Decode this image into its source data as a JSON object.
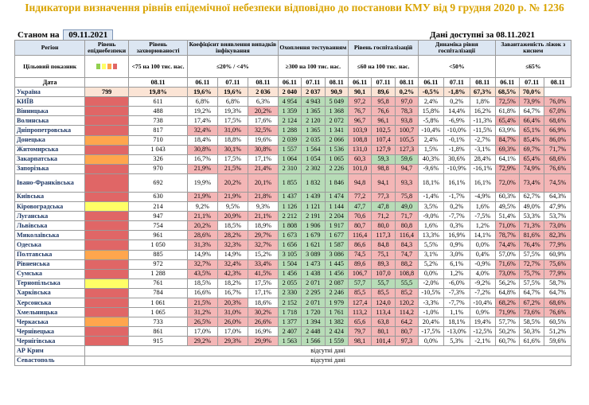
{
  "title": "Індикатори визначення рівнів епідемічної небезпеки відповідно до постанови КМУ від 9 грудня 2020 р. № 1236",
  "as_of_label": "Станом на",
  "as_of_date": "09.11.2021",
  "available_label": "Дані доступні за",
  "available_date": "08.11.2021",
  "headers": {
    "region": "Регіон",
    "level": "Рівень епіднебезпеки",
    "incidence": "Рівень захворюваності",
    "detection": "Коефіцієнт виявлення випадків інфікування",
    "testing": "Охоплення тестуванням",
    "hosp": "Рівень госпіталізацій",
    "dyn": "Динаміка рівня госпіталізації",
    "beds": "Завантаженість ліжок з киснем"
  },
  "target_label": "Цільовий показник",
  "targets": {
    "incidence": "<75 на 100 тис. нас.",
    "detection": "≤20% / <4%",
    "testing": "≥300 на 100 тис. нас.",
    "hosp": "≤60 на 100 тис. нас.",
    "dyn": "<50%",
    "beds": "≤65%"
  },
  "level_colors": {
    "green": "#92d050",
    "yellow": "#ffff66",
    "orange": "#ffa64d",
    "red": "#e06666"
  },
  "date_label": "Дата",
  "date_row": [
    "08.11",
    "06.11",
    "07.11",
    "08.11",
    "06.11",
    "07.11",
    "08.11",
    "06.11",
    "07.11",
    "08.11",
    "06.11",
    "07.11",
    "08.11",
    "06.11",
    "07.11",
    "08.11"
  ],
  "ukraine": {
    "name": "Україна",
    "values": [
      "799",
      "19,8%",
      "19,6%",
      "19,6%",
      "2 036",
      "2 040",
      "2 037",
      "90,9",
      "90,1",
      "89,6",
      "0,2%",
      "-0,5%",
      "-1,8%",
      "67,3%",
      "68,5%",
      "70,0%"
    ]
  },
  "regions": [
    {
      "name": "КИЇВ",
      "level": "red",
      "values": [
        "611",
        "6,8%",
        "6,8%",
        "6,3%",
        "4 954",
        "4 943",
        "5 049",
        "97,2",
        "95,8",
        "97,0",
        "2,4%",
        "0,2%",
        "1,8%",
        "72,5%",
        "73,9%",
        "76,0%"
      ],
      "tall": false
    },
    {
      "name": "Вінницька",
      "level": "red",
      "values": [
        "488",
        "19,2%",
        "19,3%",
        "20,2%",
        "1 359",
        "1 365",
        "1 368",
        "76,7",
        "76,6",
        "78,3",
        "15,8%",
        "14,4%",
        "16,2%",
        "61,8%",
        "64,7%",
        "67,0%"
      ],
      "tall": false
    },
    {
      "name": "Волинська",
      "level": "red",
      "values": [
        "738",
        "17,4%",
        "17,5%",
        "17,6%",
        "2 124",
        "2 120",
        "2 072",
        "96,7",
        "96,1",
        "93,8",
        "-5,8%",
        "-6,9%",
        "-11,3%",
        "65,4%",
        "66,4%",
        "68,6%"
      ],
      "tall": false
    },
    {
      "name": "Дніпропетровська",
      "level": "red",
      "values": [
        "817",
        "32,4%",
        "31,0%",
        "32,5%",
        "1 288",
        "1 365",
        "1 341",
        "103,9",
        "102,5",
        "100,7",
        "-10,4%",
        "-10,0%",
        "-11,5%",
        "63,9%",
        "65,1%",
        "66,9%"
      ],
      "tall": false
    },
    {
      "name": "Донецька",
      "level": "orange",
      "values": [
        "710",
        "18,4%",
        "18,8%",
        "19,6%",
        "2 039",
        "2 035",
        "2 066",
        "108,8",
        "107,4",
        "105,5",
        "2,4%",
        "-0,1%",
        "-2,7%",
        "84,7%",
        "85,4%",
        "86,0%"
      ],
      "tall": false
    },
    {
      "name": "Житомирська",
      "level": "red",
      "values": [
        "1 043",
        "30,8%",
        "30,1%",
        "30,8%",
        "1 557",
        "1 564",
        "1 536",
        "131,0",
        "127,9",
        "127,3",
        "1,5%",
        "-1,8%",
        "-3,1%",
        "69,3%",
        "69,7%",
        "71,7%"
      ],
      "tall": false
    },
    {
      "name": "Закарпатська",
      "level": "orange",
      "values": [
        "326",
        "16,7%",
        "17,5%",
        "17,1%",
        "1 064",
        "1 054",
        "1 065",
        "60,3",
        "59,3",
        "59,6",
        "40,3%",
        "30,6%",
        "28,4%",
        "64,1%",
        "65,4%",
        "68,6%"
      ],
      "tall": false
    },
    {
      "name": "Запорізька",
      "level": "red",
      "values": [
        "970",
        "21,9%",
        "21,5%",
        "21,4%",
        "2 310",
        "2 302",
        "2 226",
        "101,0",
        "98,8",
        "94,7",
        "-9,6%",
        "-10,9%",
        "-16,1%",
        "72,9%",
        "74,9%",
        "76,6%"
      ],
      "tall": false
    },
    {
      "name": "Івано-Франківська",
      "level": "red",
      "values": [
        "692",
        "19,9%",
        "20,2%",
        "20,1%",
        "1 855",
        "1 832",
        "1 846",
        "94,8",
        "94,1",
        "93,3",
        "18,1%",
        "16,1%",
        "16,1%",
        "72,0%",
        "73,4%",
        "74,5%"
      ],
      "tall": true
    },
    {
      "name": "Київська",
      "level": "red",
      "values": [
        "630",
        "21,9%",
        "21,9%",
        "21,8%",
        "1 437",
        "1 439",
        "1 474",
        "77,2",
        "77,3",
        "75,8",
        "-1,4%",
        "-1,7%",
        "-4,9%",
        "60,3%",
        "62,7%",
        "64,3%"
      ],
      "tall": false
    },
    {
      "name": "Кіровоградська",
      "level": "yellow",
      "values": [
        "214",
        "9,2%",
        "9,5%",
        "9,3%",
        "1 126",
        "1 121",
        "1 144",
        "47,7",
        "47,8",
        "49,0",
        "3,5%",
        "0,2%",
        "1,6%",
        "49,5%",
        "49,0%",
        "47,9%"
      ],
      "tall": false
    },
    {
      "name": "Луганська",
      "level": "red",
      "values": [
        "947",
        "21,1%",
        "20,9%",
        "21,1%",
        "2 212",
        "2 191",
        "2 204",
        "70,6",
        "71,2",
        "71,7",
        "-9,0%",
        "-7,7%",
        "-7,5%",
        "51,4%",
        "53,3%",
        "53,7%"
      ],
      "tall": false
    },
    {
      "name": "Львівська",
      "level": "red",
      "values": [
        "754",
        "20,2%",
        "18,5%",
        "18,9%",
        "1 808",
        "1 906",
        "1 917",
        "80,7",
        "80,0",
        "80,8",
        "1,6%",
        "0,3%",
        "1,2%",
        "71,0%",
        "71,3%",
        "73,0%"
      ],
      "tall": false
    },
    {
      "name": "Миколаївська",
      "level": "red",
      "values": [
        "961",
        "28,6%",
        "28,2%",
        "29,7%",
        "1 673",
        "1 679",
        "1 677",
        "116,4",
        "117,3",
        "116,4",
        "13,3%",
        "16,9%",
        "14,1%",
        "78,7%",
        "81,6%",
        "82,3%"
      ],
      "tall": false
    },
    {
      "name": "Одеська",
      "level": "red",
      "values": [
        "1 050",
        "31,3%",
        "32,3%",
        "32,7%",
        "1 656",
        "1 621",
        "1 587",
        "86,6",
        "84,8",
        "84,3",
        "5,5%",
        "0,9%",
        "0,0%",
        "74,4%",
        "76,4%",
        "77,9%"
      ],
      "tall": false
    },
    {
      "name": "Полтавська",
      "level": "orange",
      "values": [
        "885",
        "14,9%",
        "14,9%",
        "15,2%",
        "3 105",
        "3 089",
        "3 086",
        "74,5",
        "75,1",
        "74,7",
        "3,1%",
        "3,0%",
        "0,4%",
        "57,0%",
        "57,5%",
        "60,9%"
      ],
      "tall": false
    },
    {
      "name": "Рівненська",
      "level": "red",
      "values": [
        "972",
        "32,7%",
        "32,4%",
        "33,4%",
        "1 504",
        "1 473",
        "1 445",
        "89,6",
        "89,3",
        "88,2",
        "5,2%",
        "6,1%",
        "-0,9%",
        "71,6%",
        "72,7%",
        "75,6%"
      ],
      "tall": false
    },
    {
      "name": "Сумська",
      "level": "red",
      "values": [
        "1 288",
        "43,5%",
        "42,3%",
        "41,5%",
        "1 456",
        "1 438",
        "1 456",
        "106,7",
        "107,0",
        "108,8",
        "0,0%",
        "1,2%",
        "4,0%",
        "73,0%",
        "75,7%",
        "77,9%"
      ],
      "tall": false
    },
    {
      "name": "Тернопільська",
      "level": "yellow",
      "values": [
        "761",
        "18,5%",
        "18,2%",
        "17,5%",
        "2 055",
        "2 071",
        "2 087",
        "57,7",
        "55,7",
        "55,5",
        "-2,0%",
        "-6,0%",
        "-9,2%",
        "56,2%",
        "57,5%",
        "58,7%"
      ],
      "tall": false
    },
    {
      "name": "Харківська",
      "level": "red",
      "values": [
        "784",
        "16,6%",
        "16,7%",
        "17,1%",
        "2 330",
        "2 295",
        "2 246",
        "85,5",
        "85,5",
        "85,2",
        "-10,5%",
        "-7,3%",
        "-7,2%",
        "64,8%",
        "64,7%",
        "64,7%"
      ],
      "tall": false
    },
    {
      "name": "Херсонська",
      "level": "red",
      "values": [
        "1 061",
        "21,5%",
        "20,3%",
        "18,6%",
        "2 152",
        "2 071",
        "1 979",
        "127,4",
        "124,0",
        "120,2",
        "-3,3%",
        "-7,7%",
        "-10,4%",
        "68,2%",
        "67,2%",
        "68,6%"
      ],
      "tall": false
    },
    {
      "name": "Хмельницька",
      "level": "red",
      "values": [
        "1 065",
        "31,2%",
        "31,0%",
        "30,2%",
        "1 718",
        "1 720",
        "1 761",
        "113,2",
        "113,4",
        "114,2",
        "-1,0%",
        "1,1%",
        "0,9%",
        "71,9%",
        "73,6%",
        "76,6%"
      ],
      "tall": false
    },
    {
      "name": "Черкаська",
      "level": "orange",
      "values": [
        "733",
        "26,5%",
        "26,0%",
        "26,6%",
        "1 377",
        "1 394",
        "1 382",
        "65,6",
        "63,8",
        "64,2",
        "20,4%",
        "18,1%",
        "19,4%",
        "57,7%",
        "58,5%",
        "60,5%"
      ],
      "tall": false
    },
    {
      "name": "Чернівецька",
      "level": "red",
      "values": [
        "861",
        "17,0%",
        "17,0%",
        "16,9%",
        "2 407",
        "2 448",
        "2 424",
        "79,7",
        "80,1",
        "80,7",
        "-17,5%",
        "-13,0%",
        "-12,5%",
        "50,2%",
        "50,3%",
        "51,2%"
      ],
      "tall": false
    },
    {
      "name": "Чернігівська",
      "level": "red",
      "values": [
        "915",
        "29,2%",
        "29,3%",
        "29,9%",
        "1 563",
        "1 566",
        "1 559",
        "98,1",
        "101,4",
        "97,3",
        "0,0%",
        "5,3%",
        "-2,1%",
        "60,7%",
        "61,6%",
        "59,6%"
      ],
      "tall": false
    }
  ],
  "no_data": [
    {
      "name": "АР Крим",
      "text": "відсутні дані"
    },
    {
      "name": "Севастополь",
      "text": "відсутні дані"
    }
  ]
}
